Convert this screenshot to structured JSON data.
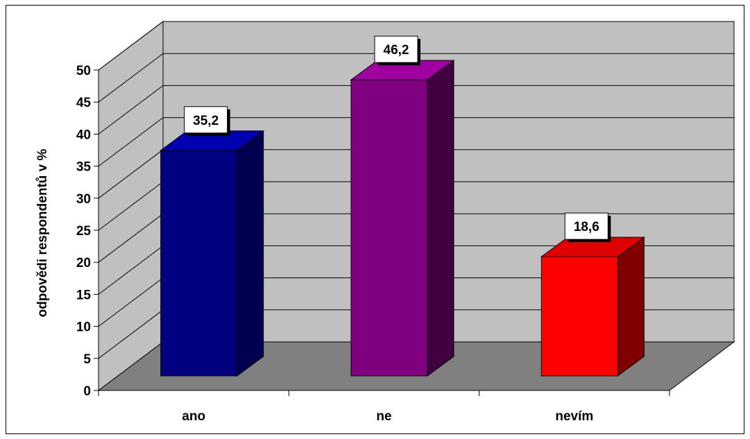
{
  "chart_data": {
    "type": "bar",
    "categories": [
      "ano",
      "ne",
      "nevím"
    ],
    "values": [
      35.2,
      46.2,
      18.6
    ],
    "data_labels": [
      "35,2",
      "46,2",
      "18,6"
    ],
    "ylabel": "odpovědi respondentů v %",
    "xlabel": "",
    "title": "",
    "ylim": [
      0,
      50
    ],
    "yticks": [
      0,
      5,
      10,
      15,
      20,
      25,
      30,
      35,
      40,
      45,
      50
    ],
    "grid": true,
    "legend": "none",
    "style": "3d-column",
    "colors": {
      "bars": [
        "#000080",
        "#800080",
        "#ff0000"
      ],
      "bar_tops": [
        "#0000b0",
        "#a000a0",
        "#e00000"
      ],
      "bar_sides": [
        "#000050",
        "#400040",
        "#800000"
      ],
      "wall": "#c0c0c0",
      "floor": "#808080",
      "gridline": "#000000"
    }
  }
}
